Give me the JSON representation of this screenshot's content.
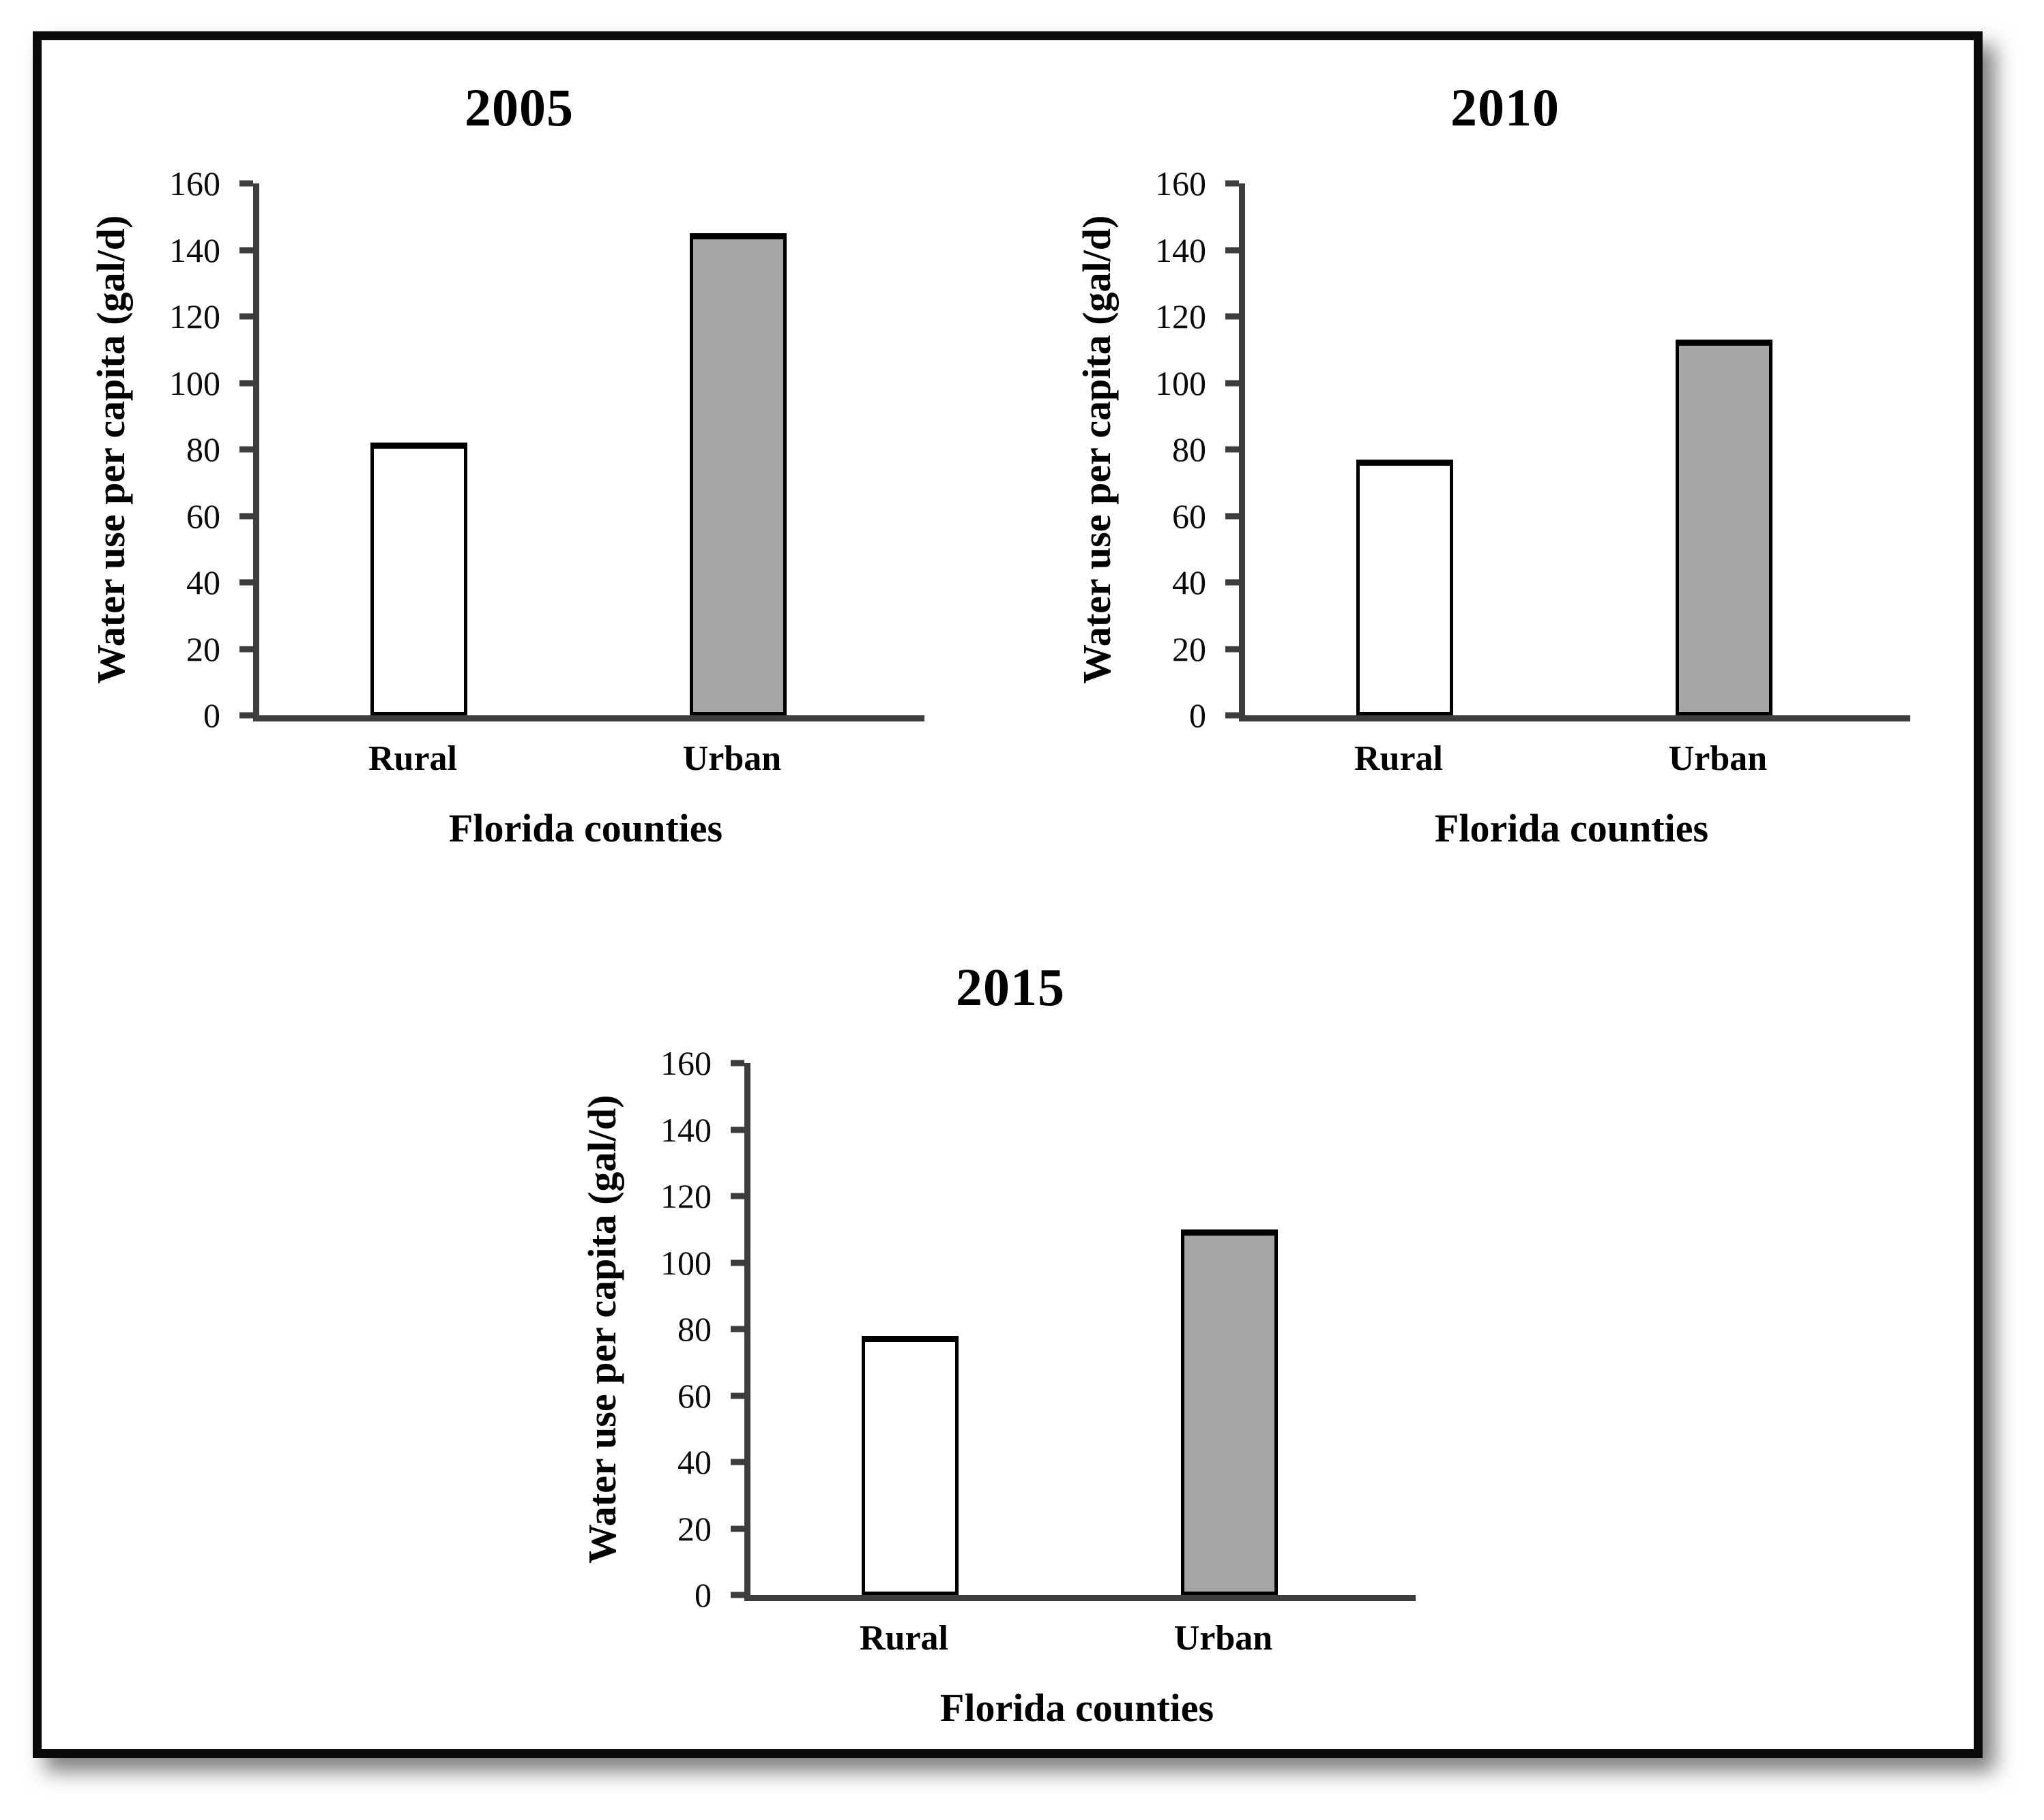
{
  "figure": {
    "background": "#ffffff",
    "frame_border_color": "#0a0a0a",
    "axis_color": "#3d3d3d",
    "bar_border_color": "#000000"
  },
  "chart_data": [
    {
      "type": "bar",
      "title": "2005",
      "categories": [
        "Rural",
        "Urban"
      ],
      "values": [
        82,
        145
      ],
      "bar_fill_colors": [
        "#ffffff",
        "#a6a6a6"
      ],
      "xlabel": "Florida counties",
      "ylabel": "Water use per capita (gal/d)",
      "ylim": [
        0,
        160
      ],
      "ytick_step": 20,
      "grid": false,
      "legend": "none"
    },
    {
      "type": "bar",
      "title": "2010",
      "categories": [
        "Rural",
        "Urban"
      ],
      "values": [
        77,
        113
      ],
      "bar_fill_colors": [
        "#ffffff",
        "#a6a6a6"
      ],
      "xlabel": "Florida counties",
      "ylabel": "Water use per capita (gal/d)",
      "ylim": [
        0,
        160
      ],
      "ytick_step": 20,
      "grid": false,
      "legend": "none"
    },
    {
      "type": "bar",
      "title": "2015",
      "categories": [
        "Rural",
        "Urban"
      ],
      "values": [
        78,
        110
      ],
      "bar_fill_colors": [
        "#ffffff",
        "#a6a6a6"
      ],
      "xlabel": "Florida counties",
      "ylabel": "Water use per capita (gal/d)",
      "ylim": [
        0,
        160
      ],
      "ytick_step": 20,
      "grid": false,
      "legend": "none"
    }
  ]
}
